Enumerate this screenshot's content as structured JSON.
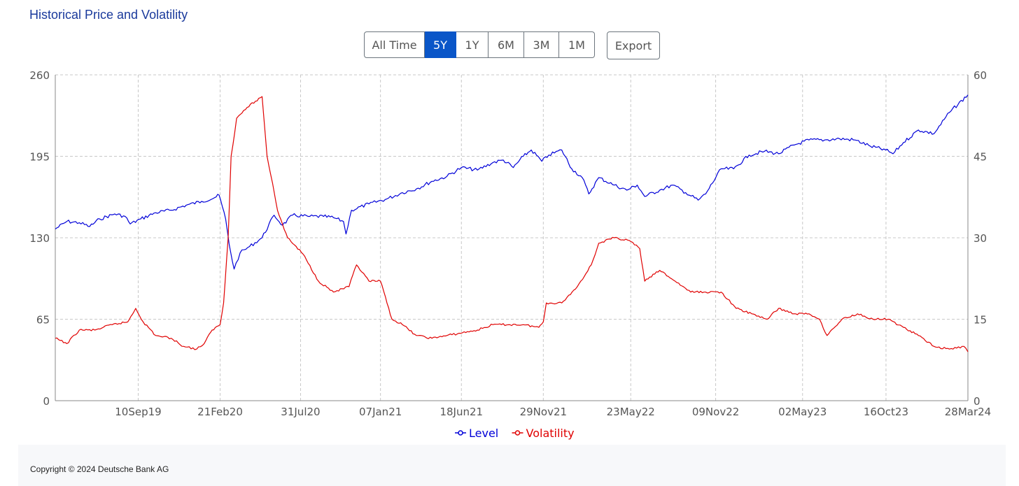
{
  "title": "Historical Price and Volatility",
  "range_buttons": [
    {
      "label": "All Time",
      "active": false
    },
    {
      "label": "5Y",
      "active": true
    },
    {
      "label": "1Y",
      "active": false
    },
    {
      "label": "6M",
      "active": false
    },
    {
      "label": "3M",
      "active": false
    },
    {
      "label": "1M",
      "active": false
    }
  ],
  "export_label": "Export",
  "footer": {
    "copyright": "Copyright © 2024 Deutsche Bank AG"
  },
  "colors": {
    "level": "#0000d8",
    "volatility": "#e00000",
    "accent": "#0a56c8",
    "title": "#1a3a9c"
  },
  "chart_data": {
    "type": "line",
    "title": "",
    "xlabel": "",
    "ylabel": "",
    "ylabel_right": "",
    "grid": true,
    "legend_position": "bottom-center",
    "x_ticks": [
      {
        "date": "2019-09-10",
        "label": "10Sep19"
      },
      {
        "date": "2020-02-21",
        "label": "21Feb20"
      },
      {
        "date": "2020-07-31",
        "label": "31Jul20"
      },
      {
        "date": "2021-01-07",
        "label": "07Jan21"
      },
      {
        "date": "2021-06-18",
        "label": "18Jun21"
      },
      {
        "date": "2021-11-29",
        "label": "29Nov21"
      },
      {
        "date": "2022-05-23",
        "label": "23May22"
      },
      {
        "date": "2022-11-09",
        "label": "09Nov22"
      },
      {
        "date": "2023-05-02",
        "label": "02May23"
      },
      {
        "date": "2023-10-16",
        "label": "16Oct23"
      },
      {
        "date": "2024-03-28",
        "label": "28Mar24"
      }
    ],
    "xlim": [
      "2019-03-28",
      "2024-03-28"
    ],
    "y_left": {
      "ticks": [
        0,
        65,
        130,
        195,
        260
      ],
      "lim": [
        0,
        260
      ]
    },
    "y_right": {
      "ticks": [
        0,
        15,
        30,
        45,
        60
      ],
      "lim": [
        0,
        60
      ]
    },
    "series": [
      {
        "name": "Level",
        "axis": "left",
        "color": "#0000d8",
        "points": [
          [
            "2019-03-28",
            137
          ],
          [
            "2019-04-20",
            143
          ],
          [
            "2019-05-15",
            142
          ],
          [
            "2019-06-05",
            139
          ],
          [
            "2019-06-25",
            145
          ],
          [
            "2019-07-25",
            149
          ],
          [
            "2019-08-15",
            147
          ],
          [
            "2019-08-25",
            141
          ],
          [
            "2019-09-15",
            145
          ],
          [
            "2019-10-15",
            150
          ],
          [
            "2019-11-15",
            152
          ],
          [
            "2019-12-15",
            156
          ],
          [
            "2020-01-15",
            159
          ],
          [
            "2020-02-10",
            162
          ],
          [
            "2020-02-19",
            164
          ],
          [
            "2020-03-03",
            145
          ],
          [
            "2020-03-10",
            125
          ],
          [
            "2020-03-20",
            105
          ],
          [
            "2020-04-01",
            118
          ],
          [
            "2020-04-20",
            123
          ],
          [
            "2020-05-15",
            130
          ],
          [
            "2020-06-08",
            148
          ],
          [
            "2020-06-25",
            140
          ],
          [
            "2020-07-15",
            148
          ],
          [
            "2020-08-15",
            147
          ],
          [
            "2020-09-15",
            147
          ],
          [
            "2020-10-05",
            146
          ],
          [
            "2020-10-25",
            143
          ],
          [
            "2020-10-30",
            133
          ],
          [
            "2020-11-10",
            152
          ],
          [
            "2020-12-15",
            157
          ],
          [
            "2021-01-20",
            161
          ],
          [
            "2021-02-20",
            166
          ],
          [
            "2021-03-20",
            169
          ],
          [
            "2021-04-20",
            175
          ],
          [
            "2021-05-20",
            179
          ],
          [
            "2021-06-18",
            186
          ],
          [
            "2021-07-20",
            184
          ],
          [
            "2021-08-20",
            190
          ],
          [
            "2021-09-10",
            192
          ],
          [
            "2021-09-30",
            186
          ],
          [
            "2021-10-20",
            195
          ],
          [
            "2021-11-05",
            200
          ],
          [
            "2021-11-26",
            191
          ],
          [
            "2021-12-10",
            196
          ],
          [
            "2022-01-05",
            200
          ],
          [
            "2022-01-25",
            185
          ],
          [
            "2022-02-15",
            178
          ],
          [
            "2022-02-28",
            165
          ],
          [
            "2022-03-20",
            178
          ],
          [
            "2022-04-20",
            172
          ],
          [
            "2022-05-15",
            168
          ],
          [
            "2022-06-05",
            172
          ],
          [
            "2022-06-20",
            163
          ],
          [
            "2022-07-20",
            168
          ],
          [
            "2022-08-15",
            172
          ],
          [
            "2022-09-10",
            166
          ],
          [
            "2022-10-05",
            160
          ],
          [
            "2022-10-20",
            165
          ],
          [
            "2022-11-20",
            185
          ],
          [
            "2022-12-15",
            185
          ],
          [
            "2023-01-15",
            196
          ],
          [
            "2023-02-15",
            199
          ],
          [
            "2023-03-15",
            197
          ],
          [
            "2023-04-15",
            204
          ],
          [
            "2023-05-15",
            208
          ],
          [
            "2023-06-15",
            208
          ],
          [
            "2023-07-15",
            209
          ],
          [
            "2023-08-15",
            208
          ],
          [
            "2023-09-15",
            203
          ],
          [
            "2023-10-15",
            200
          ],
          [
            "2023-10-30",
            197
          ],
          [
            "2023-11-20",
            206
          ],
          [
            "2023-12-20",
            216
          ],
          [
            "2024-01-20",
            213
          ],
          [
            "2024-02-20",
            230
          ],
          [
            "2024-03-28",
            244
          ]
        ]
      },
      {
        "name": "Volatility",
        "axis": "right",
        "color": "#e00000",
        "points": [
          [
            "2019-03-28",
            11.5
          ],
          [
            "2019-04-20",
            10.5
          ],
          [
            "2019-05-15",
            13.0
          ],
          [
            "2019-06-15",
            13.0
          ],
          [
            "2019-07-20",
            14.0
          ],
          [
            "2019-08-20",
            14.5
          ],
          [
            "2019-09-05",
            17.0
          ],
          [
            "2019-09-20",
            14.5
          ],
          [
            "2019-10-15",
            12.0
          ],
          [
            "2019-11-15",
            11.5
          ],
          [
            "2019-12-10",
            10.0
          ],
          [
            "2020-01-05",
            9.5
          ],
          [
            "2020-01-20",
            10.5
          ],
          [
            "2020-02-05",
            13.0
          ],
          [
            "2020-02-21",
            14.0
          ],
          [
            "2020-02-28",
            18.0
          ],
          [
            "2020-03-08",
            30.0
          ],
          [
            "2020-03-14",
            45.0
          ],
          [
            "2020-03-25",
            52.0
          ],
          [
            "2020-04-15",
            54.0
          ],
          [
            "2020-05-15",
            56.0
          ],
          [
            "2020-05-25",
            45.0
          ],
          [
            "2020-06-05",
            40.0
          ],
          [
            "2020-06-15",
            35.0
          ],
          [
            "2020-07-05",
            30.0
          ],
          [
            "2020-08-05",
            27.0
          ],
          [
            "2020-09-05",
            22.0
          ],
          [
            "2020-10-05",
            20.0
          ],
          [
            "2020-11-05",
            21.0
          ],
          [
            "2020-11-20",
            25.0
          ],
          [
            "2020-12-15",
            22.0
          ],
          [
            "2021-01-07",
            22.0
          ],
          [
            "2021-01-30",
            15.0
          ],
          [
            "2021-02-20",
            14.0
          ],
          [
            "2021-03-20",
            12.0
          ],
          [
            "2021-04-20",
            11.5
          ],
          [
            "2021-05-20",
            12.0
          ],
          [
            "2021-06-20",
            12.5
          ],
          [
            "2021-07-20",
            13.0
          ],
          [
            "2021-08-20",
            14.0
          ],
          [
            "2021-09-20",
            14.0
          ],
          [
            "2021-10-20",
            14.0
          ],
          [
            "2021-11-20",
            13.5
          ],
          [
            "2021-11-29",
            14.5
          ],
          [
            "2021-12-05",
            18.0
          ],
          [
            "2022-01-05",
            18.0
          ],
          [
            "2022-02-05",
            21.0
          ],
          [
            "2022-03-05",
            25.0
          ],
          [
            "2022-03-20",
            29.0
          ],
          [
            "2022-04-20",
            30.0
          ],
          [
            "2022-05-20",
            29.5
          ],
          [
            "2022-06-10",
            28.0
          ],
          [
            "2022-06-20",
            22.0
          ],
          [
            "2022-07-20",
            24.0
          ],
          [
            "2022-08-20",
            22.0
          ],
          [
            "2022-09-20",
            20.0
          ],
          [
            "2022-10-20",
            20.0
          ],
          [
            "2022-11-20",
            20.0
          ],
          [
            "2022-12-20",
            17.0
          ],
          [
            "2023-01-20",
            16.0
          ],
          [
            "2023-02-20",
            15.0
          ],
          [
            "2023-03-15",
            17.0
          ],
          [
            "2023-04-15",
            16.0
          ],
          [
            "2023-05-15",
            16.0
          ],
          [
            "2023-06-05",
            15.0
          ],
          [
            "2023-06-20",
            12.0
          ],
          [
            "2023-07-20",
            15.0
          ],
          [
            "2023-08-20",
            16.0
          ],
          [
            "2023-09-20",
            15.0
          ],
          [
            "2023-10-20",
            15.0
          ],
          [
            "2023-11-20",
            13.5
          ],
          [
            "2023-12-20",
            12.0
          ],
          [
            "2024-01-20",
            10.0
          ],
          [
            "2024-02-20",
            9.5
          ],
          [
            "2024-03-20",
            10.0
          ],
          [
            "2024-03-28",
            9.0
          ]
        ]
      }
    ]
  }
}
